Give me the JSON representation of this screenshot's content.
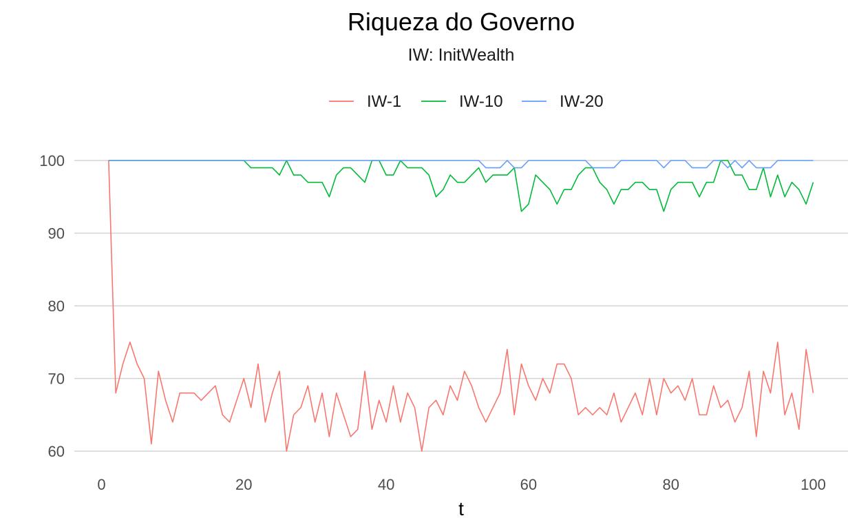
{
  "chart_data": {
    "type": "line",
    "title": "Riqueza do Governo",
    "subtitle": "IW: InitWealth",
    "xlabel": "t",
    "ylabel": "",
    "xlim": [
      1,
      100
    ],
    "ylim": [
      60,
      100
    ],
    "x_ticks": [
      0,
      20,
      40,
      60,
      80,
      100
    ],
    "y_ticks": [
      60,
      70,
      80,
      90,
      100
    ],
    "grid": "horizontal",
    "legend_position": "top",
    "x_start": 1,
    "series": [
      {
        "name": "IW-1",
        "color": "#F8766D",
        "values": [
          100,
          68,
          72,
          75,
          72,
          70,
          61,
          71,
          67,
          64,
          68,
          68,
          68,
          67,
          68,
          69,
          65,
          64,
          67,
          70,
          66,
          72,
          64,
          68,
          71,
          60,
          65,
          66,
          69,
          64,
          68,
          62,
          68,
          65,
          62,
          63,
          71,
          63,
          67,
          64,
          69,
          64,
          68,
          66,
          60,
          66,
          67,
          65,
          69,
          67,
          71,
          69,
          66,
          64,
          66,
          68,
          74,
          65,
          72,
          69,
          67,
          70,
          68,
          72,
          72,
          70,
          65,
          66,
          65,
          66,
          65,
          68,
          64,
          66,
          68,
          65,
          70,
          65,
          70,
          68,
          69,
          67,
          70,
          65,
          65,
          69,
          66,
          67,
          64,
          66,
          71,
          62,
          71,
          68,
          75,
          65,
          68,
          63,
          74,
          68
        ]
      },
      {
        "name": "IW-10",
        "color": "#00BA38",
        "values": [
          100,
          100,
          100,
          100,
          100,
          100,
          100,
          100,
          100,
          100,
          100,
          100,
          100,
          100,
          100,
          100,
          100,
          100,
          100,
          100,
          99,
          99,
          99,
          99,
          98,
          100,
          98,
          98,
          97,
          97,
          97,
          95,
          98,
          99,
          99,
          98,
          97,
          100,
          100,
          98,
          98,
          100,
          99,
          99,
          99,
          98,
          95,
          96,
          98,
          97,
          97,
          98,
          99,
          97,
          98,
          98,
          98,
          99,
          93,
          94,
          98,
          97,
          96,
          94,
          96,
          96,
          98,
          99,
          99,
          97,
          96,
          94,
          96,
          96,
          97,
          97,
          96,
          96,
          93,
          96,
          97,
          97,
          97,
          95,
          97,
          97,
          100,
          100,
          98,
          98,
          96,
          96,
          99,
          95,
          98,
          95,
          97,
          96,
          94,
          97
        ]
      },
      {
        "name": "IW-20",
        "color": "#619CFF",
        "values": [
          100,
          100,
          100,
          100,
          100,
          100,
          100,
          100,
          100,
          100,
          100,
          100,
          100,
          100,
          100,
          100,
          100,
          100,
          100,
          100,
          100,
          100,
          100,
          100,
          100,
          100,
          100,
          100,
          100,
          100,
          100,
          100,
          100,
          100,
          100,
          100,
          100,
          100,
          100,
          100,
          100,
          100,
          100,
          100,
          100,
          100,
          100,
          100,
          100,
          100,
          100,
          100,
          100,
          99,
          99,
          99,
          100,
          99,
          99,
          100,
          100,
          100,
          100,
          100,
          100,
          100,
          100,
          100,
          99,
          99,
          99,
          99,
          100,
          100,
          100,
          100,
          100,
          100,
          99,
          100,
          100,
          100,
          99,
          99,
          99,
          100,
          100,
          99,
          100,
          99,
          100,
          99,
          99,
          99,
          100,
          100,
          100,
          100,
          100,
          100
        ]
      }
    ]
  }
}
